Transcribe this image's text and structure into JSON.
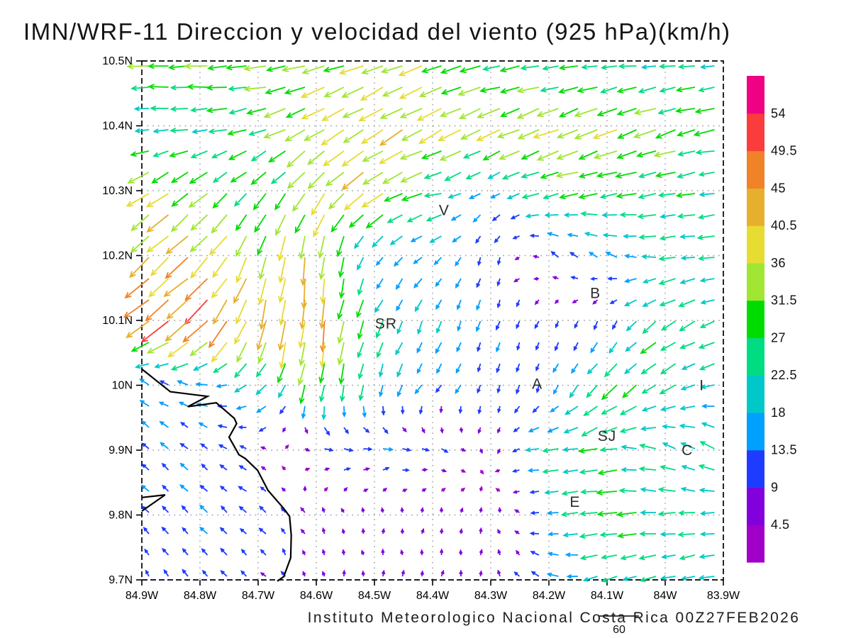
{
  "title": "IMN/WRF-11 Direccion y velocidad del viento (925 hPa)(km/h)",
  "footer": {
    "credit": "Instituto Meteorologico Nacional Costa Rica 00Z27FEB2026",
    "ref_vector_label": "60"
  },
  "chart_data": {
    "type": "vector-field",
    "variable": "wind direction and speed",
    "level": "925 hPa",
    "units": "km/h",
    "model": "IMN/WRF-11",
    "valid_time": "00Z27FEB2026",
    "lon_range": [
      84.9,
      83.9
    ],
    "lat_range": [
      10.5,
      9.7
    ],
    "grid_on": true,
    "x_ticks": {
      "values": [
        84.9,
        84.8,
        84.7,
        84.6,
        84.5,
        84.4,
        84.3,
        84.2,
        84.1,
        84.0,
        83.9
      ],
      "labels": [
        "84.9W",
        "84.8W",
        "84.7W",
        "84.6W",
        "84.5W",
        "84.4W",
        "84.3W",
        "84.2W",
        "84.1W",
        "84W",
        "83.9W"
      ]
    },
    "y_ticks": {
      "values": [
        10.5,
        10.4,
        10.3,
        10.2,
        10.1,
        10.0,
        9.9,
        9.8,
        9.7
      ],
      "labels": [
        "10.5N",
        "10.4N",
        "10.3N",
        "10.2N",
        "10.1N",
        "10N",
        "9.9N",
        "9.8N",
        "9.7N"
      ]
    },
    "colorbar": {
      "position": "right",
      "levels": [
        4.5,
        9,
        13.5,
        18,
        22.5,
        27,
        31.5,
        36,
        40.5,
        45,
        49.5,
        54
      ],
      "labels": [
        "4.5",
        "9",
        "13.5",
        "18",
        "22.5",
        "27",
        "31.5",
        "36",
        "40.5",
        "45",
        "49.5",
        "54"
      ],
      "colors": [
        "#a000c8",
        "#8200dc",
        "#1e3cff",
        "#00a0ff",
        "#00c8c8",
        "#00dc82",
        "#00dc00",
        "#a0e632",
        "#e6dc32",
        "#e6af2d",
        "#f08228",
        "#fa3c3c",
        "#f00082"
      ]
    },
    "reference_vector_kmh": 60,
    "cities": [
      {
        "label": "V",
        "lon": 84.38,
        "lat": 10.27
      },
      {
        "label": "SR",
        "lon": 84.48,
        "lat": 10.095
      },
      {
        "label": "B",
        "lon": 84.12,
        "lat": 10.142
      },
      {
        "label": "A",
        "lon": 84.22,
        "lat": 10.002
      },
      {
        "label": "I",
        "lon": 83.937,
        "lat": 10.0
      },
      {
        "label": "SJ",
        "lon": 84.1,
        "lat": 9.922
      },
      {
        "label": "C",
        "lon": 83.962,
        "lat": 9.9
      },
      {
        "label": "E",
        "lon": 84.155,
        "lat": 9.82
      }
    ],
    "coastline": [
      [
        [
          84.9,
          10.025
        ],
        [
          84.851,
          9.99
        ],
        [
          84.787,
          9.983
        ],
        [
          84.821,
          9.967
        ],
        [
          84.772,
          9.973
        ],
        [
          84.741,
          9.949
        ],
        [
          84.737,
          9.941
        ],
        [
          84.75,
          9.92
        ],
        [
          84.733,
          9.893
        ],
        [
          84.722,
          9.887
        ],
        [
          84.701,
          9.869
        ],
        [
          84.683,
          9.838
        ],
        [
          84.656,
          9.81
        ],
        [
          84.646,
          9.798
        ],
        [
          84.643,
          9.769
        ],
        [
          84.644,
          9.734
        ],
        [
          84.656,
          9.705
        ],
        [
          84.667,
          9.698
        ]
      ],
      [
        [
          84.9,
          9.827
        ],
        [
          84.86,
          9.831
        ],
        [
          84.9,
          9.806
        ]
      ]
    ],
    "wind_grid": {
      "note": "direction = flow-toward angle, degrees CCW from east; coarse 0.1-degree sample of plotted vectors",
      "lons": [
        84.9,
        84.8,
        84.7,
        84.6,
        84.5,
        84.4,
        84.3,
        84.2,
        84.1,
        84.0,
        83.9
      ],
      "lats": [
        10.5,
        10.4,
        10.3,
        10.2,
        10.1,
        10.0,
        9.9,
        9.8,
        9.7
      ],
      "dir_deg": [
        [
          182,
          180,
          185,
          195,
          200,
          200,
          190,
          186,
          185,
          185,
          184
        ],
        [
          180,
          183,
          195,
          210,
          212,
          208,
          205,
          203,
          203,
          200,
          192
        ],
        [
          212,
          220,
          228,
          235,
          215,
          192,
          212,
          195,
          190,
          190,
          186
        ],
        [
          225,
          222,
          252,
          268,
          235,
          215,
          262,
          140,
          150,
          185,
          185
        ],
        [
          215,
          222,
          255,
          265,
          245,
          250,
          250,
          245,
          250,
          215,
          200
        ],
        [
          145,
          165,
          215,
          258,
          260,
          230,
          255,
          250,
          225,
          212,
          190
        ],
        [
          140,
          140,
          160,
          350,
          0,
          340,
          270,
          185,
          190,
          160,
          150
        ],
        [
          135,
          135,
          140,
          120,
          100,
          85,
          80,
          190,
          185,
          180,
          185
        ],
        [
          120,
          130,
          135,
          100,
          90,
          85,
          90,
          150,
          200,
          195,
          190
        ]
      ],
      "speed_kmh": [
        [
          30,
          31,
          30,
          33,
          34,
          33,
          28,
          25,
          23,
          22,
          22
        ],
        [
          20,
          24,
          28,
          36,
          38,
          38,
          36,
          36,
          36,
          32,
          28
        ],
        [
          38,
          32,
          26,
          34,
          38,
          28,
          14,
          26,
          28,
          27,
          23
        ],
        [
          40,
          42,
          36,
          40,
          16,
          16,
          13,
          12,
          16,
          22,
          22
        ],
        [
          44,
          50,
          42,
          45,
          25,
          18,
          14,
          10,
          12,
          28,
          22
        ],
        [
          14,
          16,
          20,
          28,
          20,
          15,
          12,
          12,
          30,
          25,
          20
        ],
        [
          14,
          13,
          10,
          12,
          14,
          11,
          6,
          22,
          26,
          22,
          22
        ],
        [
          12,
          14,
          13,
          8,
          6,
          6,
          7,
          14,
          30,
          24,
          22
        ],
        [
          10,
          12,
          10,
          7,
          8,
          8,
          8,
          15,
          22,
          22,
          20
        ]
      ]
    }
  }
}
